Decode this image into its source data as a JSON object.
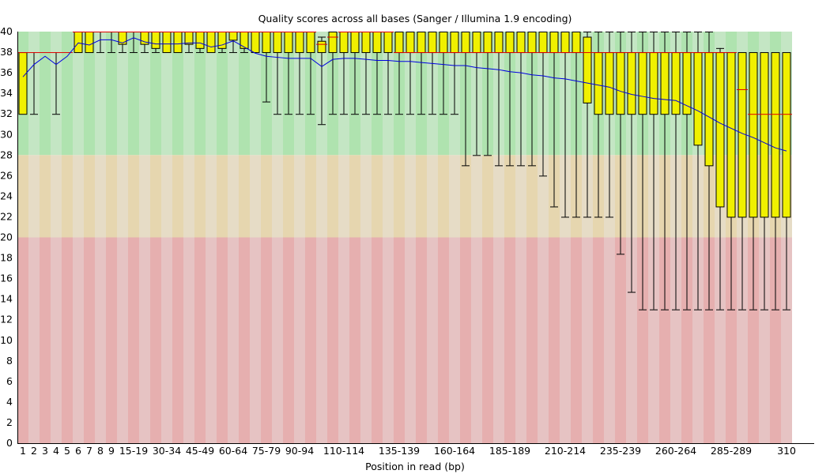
{
  "chart_data": {
    "type": "boxplot",
    "title": "Quality scores across all bases (Sanger / Illumina 1.9 encoding)",
    "xlabel": "Position in read (bp)",
    "ylabel": "",
    "ylim": [
      0,
      40
    ],
    "yticks": [
      0,
      2,
      4,
      6,
      8,
      10,
      12,
      14,
      16,
      18,
      20,
      22,
      24,
      26,
      28,
      30,
      32,
      34,
      36,
      38,
      40
    ],
    "zones": [
      {
        "name": "good",
        "from": 28,
        "to": 40,
        "colors": [
          "#afe3af",
          "#c4e6c4"
        ]
      },
      {
        "name": "reasonable",
        "from": 20,
        "to": 28,
        "colors": [
          "#e6d6af",
          "#e6dcc6"
        ]
      },
      {
        "name": "poor",
        "from": 0,
        "to": 20,
        "colors": [
          "#e6afaf",
          "#e6c3c3"
        ]
      }
    ],
    "colors": {
      "box": "#f0f000",
      "median": "#e00000",
      "mean": "#0000e0",
      "whisker": "#000000"
    },
    "categories": [
      "1",
      "2",
      "3",
      "4",
      "5",
      "6",
      "7",
      "8",
      "9",
      "10-14",
      "15-19",
      "20-24",
      "25-29",
      "30-34",
      "35-39",
      "40-44",
      "45-49",
      "50-54",
      "55-59",
      "60-64",
      "65-69",
      "70-74",
      "75-79",
      "80-84",
      "85-89",
      "90-94",
      "95-99",
      "100-104",
      "105-109",
      "110-114",
      "115-119",
      "120-124",
      "125-129",
      "130-134",
      "135-139",
      "140-144",
      "145-149",
      "150-154",
      "155-159",
      "160-164",
      "165-169",
      "170-174",
      "175-179",
      "180-184",
      "185-189",
      "190-194",
      "195-199",
      "200-204",
      "205-209",
      "210-214",
      "215-219",
      "220-224",
      "225-229",
      "230-234",
      "235-239",
      "240-244",
      "245-249",
      "250-254",
      "255-259",
      "260-264",
      "265-269",
      "270-274",
      "275-279",
      "280-284",
      "285-289",
      "290-294",
      "295-299",
      "300-304",
      "305-309",
      "310"
    ],
    "tick_labels": [
      {
        "index": 0,
        "label": "1"
      },
      {
        "index": 1,
        "label": "2"
      },
      {
        "index": 2,
        "label": "3"
      },
      {
        "index": 3,
        "label": "4"
      },
      {
        "index": 4,
        "label": "5"
      },
      {
        "index": 5,
        "label": "6"
      },
      {
        "index": 6,
        "label": "7"
      },
      {
        "index": 7,
        "label": "8"
      },
      {
        "index": 8,
        "label": "9"
      },
      {
        "index": 10,
        "label": "15-19"
      },
      {
        "index": 13,
        "label": "30-34"
      },
      {
        "index": 16,
        "label": "45-49"
      },
      {
        "index": 19,
        "label": "60-64"
      },
      {
        "index": 22,
        "label": "75-79"
      },
      {
        "index": 25,
        "label": "90-94"
      },
      {
        "index": 29,
        "label": "110-114"
      },
      {
        "index": 34,
        "label": "135-139"
      },
      {
        "index": 39,
        "label": "160-164"
      },
      {
        "index": 44,
        "label": "185-189"
      },
      {
        "index": 49,
        "label": "210-214"
      },
      {
        "index": 54,
        "label": "235-239"
      },
      {
        "index": 59,
        "label": "260-264"
      },
      {
        "index": 64,
        "label": "285-289"
      },
      {
        "index": 69,
        "label": "310"
      }
    ],
    "boxes": [
      [
        32,
        32,
        38,
        38,
        38
      ],
      [
        32,
        38,
        38,
        38,
        38
      ],
      [
        38,
        38,
        38,
        38,
        38
      ],
      [
        32,
        38,
        38,
        38,
        38
      ],
      [
        38,
        38,
        38,
        38,
        38
      ],
      [
        38,
        38,
        40,
        40,
        40
      ],
      [
        38,
        38,
        40,
        40,
        40
      ],
      [
        38,
        40,
        40,
        40,
        40
      ],
      [
        38,
        40,
        40,
        40,
        40
      ],
      [
        38,
        38.8,
        40,
        40,
        40
      ],
      [
        38,
        40,
        40,
        40,
        40
      ],
      [
        38,
        38.8,
        40,
        40,
        40
      ],
      [
        38,
        38.4,
        40,
        40,
        40
      ],
      [
        38,
        38,
        40,
        40,
        40
      ],
      [
        38,
        38,
        40,
        40,
        40
      ],
      [
        38,
        38.8,
        40,
        40,
        40
      ],
      [
        38,
        38.4,
        40,
        40,
        40
      ],
      [
        38,
        38,
        40,
        40,
        40
      ],
      [
        38,
        38.4,
        40,
        40,
        40
      ],
      [
        38,
        39.2,
        40,
        40,
        40
      ],
      [
        38,
        38.4,
        40,
        40,
        40
      ],
      [
        38,
        38,
        40,
        40,
        40
      ],
      [
        33.2,
        38,
        40,
        40,
        40
      ],
      [
        32,
        38,
        40,
        40,
        40
      ],
      [
        32,
        38,
        40,
        40,
        40
      ],
      [
        32,
        38,
        40,
        40,
        40
      ],
      [
        32,
        38,
        40,
        40,
        40
      ],
      [
        31,
        38,
        38.8,
        39.1,
        39.5
      ],
      [
        32,
        38,
        39.5,
        40,
        40
      ],
      [
        32,
        38,
        40,
        40,
        40
      ],
      [
        32,
        38,
        40,
        40,
        40
      ],
      [
        32,
        38,
        40,
        40,
        40
      ],
      [
        32,
        38,
        40,
        40,
        40
      ],
      [
        32,
        38,
        40,
        40,
        40
      ],
      [
        32,
        38,
        38,
        40,
        40
      ],
      [
        32,
        38,
        38,
        40,
        40
      ],
      [
        32,
        38,
        38,
        40,
        40
      ],
      [
        32,
        38,
        38,
        40,
        40
      ],
      [
        32,
        38,
        38,
        40,
        40
      ],
      [
        32,
        38,
        38,
        40,
        40
      ],
      [
        27,
        38,
        38,
        40,
        40
      ],
      [
        28,
        38,
        38,
        40,
        40
      ],
      [
        28,
        38,
        38,
        40,
        40
      ],
      [
        27,
        38,
        38,
        40,
        40
      ],
      [
        27,
        38,
        38,
        40,
        40
      ],
      [
        27,
        38,
        38,
        40,
        40
      ],
      [
        27,
        38,
        38,
        40,
        40
      ],
      [
        26,
        38,
        38,
        40,
        40
      ],
      [
        23,
        38,
        38,
        40,
        40
      ],
      [
        22,
        38,
        38,
        40,
        40
      ],
      [
        22,
        38,
        38,
        40,
        40
      ],
      [
        22,
        33.1,
        38,
        39.5,
        40
      ],
      [
        22,
        32,
        38,
        38,
        40
      ],
      [
        22,
        32,
        38,
        38,
        40
      ],
      [
        18.4,
        32,
        38,
        38,
        40
      ],
      [
        14.7,
        32,
        38,
        38,
        40
      ],
      [
        13,
        32,
        38,
        38,
        40
      ],
      [
        13,
        32,
        38,
        38,
        40
      ],
      [
        13,
        32,
        38,
        38,
        40
      ],
      [
        13,
        32,
        38,
        38,
        40
      ],
      [
        13,
        32,
        38,
        38,
        40
      ],
      [
        13,
        29,
        38,
        38,
        40
      ],
      [
        13,
        27,
        38,
        38,
        40
      ],
      [
        13,
        23,
        38,
        38,
        38.4
      ],
      [
        13,
        22,
        38,
        38,
        38
      ],
      [
        13,
        22,
        34.4,
        38,
        38
      ],
      [
        13,
        22,
        32,
        38,
        38
      ],
      [
        13,
        22,
        32,
        38,
        38
      ],
      [
        13,
        22,
        32,
        38,
        38
      ],
      [
        13,
        22,
        32,
        38,
        38
      ]
    ],
    "box_format": [
      "lower_whisker",
      "q1",
      "median",
      "q3",
      "upper_whisker"
    ],
    "mean": [
      35.6,
      36.8,
      37.6,
      36.8,
      37.6,
      38.9,
      38.7,
      39.2,
      39.2,
      38.9,
      39.4,
      39.0,
      38.8,
      38.8,
      38.8,
      38.9,
      38.9,
      38.5,
      38.7,
      39.1,
      38.5,
      37.9,
      37.6,
      37.5,
      37.4,
      37.4,
      37.4,
      36.6,
      37.3,
      37.4,
      37.4,
      37.3,
      37.2,
      37.2,
      37.1,
      37.1,
      37.0,
      36.9,
      36.8,
      36.7,
      36.7,
      36.5,
      36.4,
      36.3,
      36.1,
      36.0,
      35.8,
      35.7,
      35.5,
      35.4,
      35.2,
      35.0,
      34.8,
      34.6,
      34.2,
      33.9,
      33.7,
      33.5,
      33.4,
      33.3,
      32.8,
      32.3,
      31.7,
      31.1,
      30.6,
      30.1,
      29.7,
      29.2,
      28.7,
      28.4
    ]
  }
}
